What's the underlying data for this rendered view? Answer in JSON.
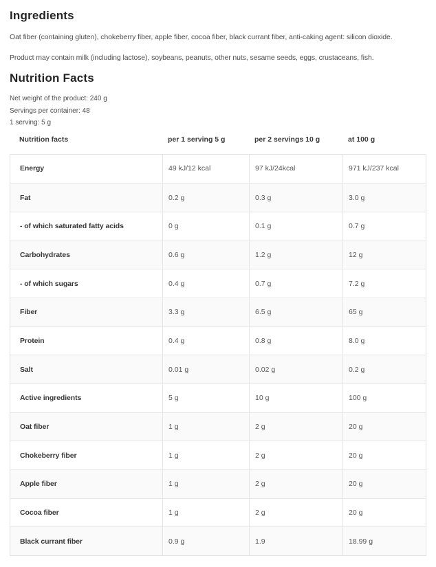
{
  "page": {
    "ingredients_heading": "Ingredients",
    "ingredients_text": "Oat fiber (containing gluten), chokeberry fiber, apple fiber, cocoa fiber, black currant fiber, anti-caking agent: silicon dioxide.",
    "allergen_text": "Product may contain milk (including lactose), soybeans, peanuts, other nuts, sesame seeds, eggs, crustaceans, fish.",
    "nutrition_heading": "Nutrition Facts",
    "meta": {
      "net_weight": "Net weight of the product: 240 g",
      "servings_per_container": "Servings per container: 48",
      "serving_size": "1 serving: 5 g"
    }
  },
  "table": {
    "columns": [
      "Nutrition facts",
      "per 1 serving 5 g",
      "per 2 servings 10 g",
      "at 100 g"
    ],
    "rows": [
      {
        "label": "Energy",
        "per_serving": "49 kJ/12 kcal",
        "per_2_servings": "97 kJ/24kcal",
        "per_100g": "971 kJ/237 kcal"
      },
      {
        "label": "Fat",
        "per_serving": "0.2 g",
        "per_2_servings": "0.3 g",
        "per_100g": "3.0 g"
      },
      {
        "label": "- of which saturated fatty acids",
        "per_serving": "0 g",
        "per_2_servings": "0.1 g",
        "per_100g": "0.7 g"
      },
      {
        "label": "Carbohydrates",
        "per_serving": "0.6 g",
        "per_2_servings": "1.2 g",
        "per_100g": "12 g"
      },
      {
        "label": "- of which sugars",
        "per_serving": "0.4 g",
        "per_2_servings": "0.7 g",
        "per_100g": "7.2 g"
      },
      {
        "label": "Fiber",
        "per_serving": "3.3 g",
        "per_2_servings": "6.5 g",
        "per_100g": "65 g"
      },
      {
        "label": "Protein",
        "per_serving": "0.4 g",
        "per_2_servings": "0.8 g",
        "per_100g": "8.0 g"
      },
      {
        "label": "Salt",
        "per_serving": "0.01 g",
        "per_2_servings": "0.02 g",
        "per_100g": "0.2 g"
      },
      {
        "label": "Active ingredients",
        "per_serving": "5 g",
        "per_2_servings": "10 g",
        "per_100g": "100 g"
      },
      {
        "label": "Oat fiber",
        "per_serving": "1 g",
        "per_2_servings": "2 g",
        "per_100g": "20 g"
      },
      {
        "label": "Chokeberry fiber",
        "per_serving": "1 g",
        "per_2_servings": "2 g",
        "per_100g": "20 g"
      },
      {
        "label": "Apple fiber",
        "per_serving": "1 g",
        "per_2_servings": "2 g",
        "per_100g": "20 g"
      },
      {
        "label": "Cocoa fiber",
        "per_serving": "1 g",
        "per_2_servings": "2 g",
        "per_100g": "20 g"
      },
      {
        "label": "Black currant fiber",
        "per_serving": "0.9 g",
        "per_2_servings": "1.9",
        "per_100g": "18.99 g"
      }
    ]
  },
  "colors": {
    "heading_text": "#242424",
    "body_text": "#4d4d4d",
    "label_text": "#383838",
    "value_text": "#565656",
    "row_alt_bg": "#fafafa",
    "border": "#e0e0e0"
  }
}
